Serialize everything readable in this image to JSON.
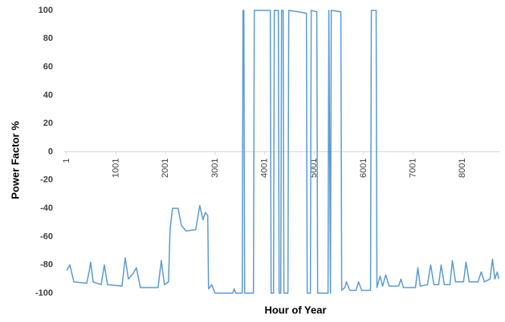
{
  "chart_data": {
    "type": "line",
    "x_label": "Hour of Year",
    "y_label": "Power Factor %",
    "xlim": [
      1,
      8760
    ],
    "xticks": [
      1,
      1001,
      2001,
      3001,
      4001,
      5001,
      6001,
      7001,
      8001
    ],
    "ylim": [
      -100,
      100
    ],
    "yticks": [
      -100,
      -80,
      -60,
      -40,
      -20,
      0,
      20,
      40,
      60,
      80,
      100
    ],
    "series": [
      {
        "color": "#5b9bd5",
        "x": [
          1,
          66,
          147,
          406,
          455,
          487,
          536,
          698,
          762,
          827,
          1119,
          1184,
          1248,
          1346,
          1410,
          1491,
          1848,
          1913,
          1977,
          2058,
          2091,
          2139,
          2253,
          2318,
          2415,
          2609,
          2690,
          2755,
          2804,
          2852,
          2868,
          2933,
          2998,
          3355,
          3387,
          3419,
          3549,
          3565,
          3581,
          3597,
          3775,
          3792,
          4116,
          4132,
          4181,
          4197,
          4278,
          4294,
          4327,
          4343,
          4375,
          4391,
          4472,
          4488,
          4683,
          4845,
          4861,
          4926,
          4942,
          5055,
          5072,
          5282,
          5298,
          5331,
          5347,
          5541,
          5558,
          5622,
          5655,
          5720,
          5849,
          5898,
          5963,
          6141,
          6157,
          6254,
          6270,
          6335,
          6384,
          6449,
          6514,
          6708,
          6756,
          6805,
          7048,
          7097,
          7145,
          7291,
          7356,
          7421,
          7518,
          7567,
          7631,
          7745,
          7794,
          7858,
          8020,
          8069,
          8134,
          8312,
          8377,
          8442,
          8555,
          8604,
          8652,
          8701,
          8733
        ],
        "values": [
          -84,
          -80,
          -92,
          -93,
          -85,
          -78,
          -92,
          -94,
          -80,
          -94,
          -95,
          -75,
          -90,
          -86,
          -82,
          -96,
          -96,
          -77,
          -94,
          -92,
          -55,
          -40,
          -40,
          -52,
          -56,
          -55,
          -38,
          -48,
          -43,
          -45,
          -97,
          -94,
          -100,
          -100,
          -97,
          -100,
          -100,
          100,
          100,
          -100,
          -100,
          100,
          100,
          -100,
          -100,
          100,
          100,
          -100,
          -100,
          100,
          100,
          -100,
          -100,
          100,
          99,
          98,
          -100,
          -100,
          100,
          99,
          -100,
          -100,
          100,
          -100,
          100,
          99,
          -98,
          -96,
          -92,
          -98,
          -98,
          -92,
          -98,
          -98,
          100,
          100,
          -96,
          -88,
          -95,
          -87,
          -95,
          -95,
          -90,
          -96,
          -96,
          -82,
          -95,
          -94,
          -80,
          -94,
          -94,
          -80,
          -94,
          -94,
          -77,
          -92,
          -92,
          -78,
          -92,
          -92,
          -85,
          -92,
          -90,
          -76,
          -90,
          -85,
          -90
        ]
      }
    ]
  }
}
